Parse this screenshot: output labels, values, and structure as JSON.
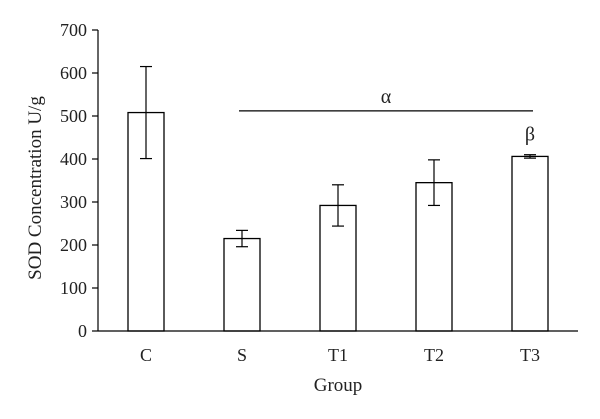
{
  "chart_data": {
    "type": "bar",
    "xlabel": "Group",
    "ylabel": "SOD Concentration U/g",
    "ylim": [
      0,
      700
    ],
    "yticks": [
      0,
      100,
      200,
      300,
      400,
      500,
      600,
      700
    ],
    "categories": [
      "C",
      "S",
      "T1",
      "T2",
      "T3"
    ],
    "values": [
      508,
      215,
      292,
      345,
      406
    ],
    "errors": [
      107,
      19,
      48,
      53,
      4
    ],
    "annotations": [
      {
        "text": "α",
        "kind": "bracket",
        "from_category": "S",
        "to_category": "T3",
        "y": 512
      },
      {
        "text": "β",
        "kind": "label",
        "category": "T3"
      }
    ],
    "colors": {
      "bar_fill": "#ffffff",
      "bar_stroke": "#000000",
      "axis": "#000000"
    }
  }
}
